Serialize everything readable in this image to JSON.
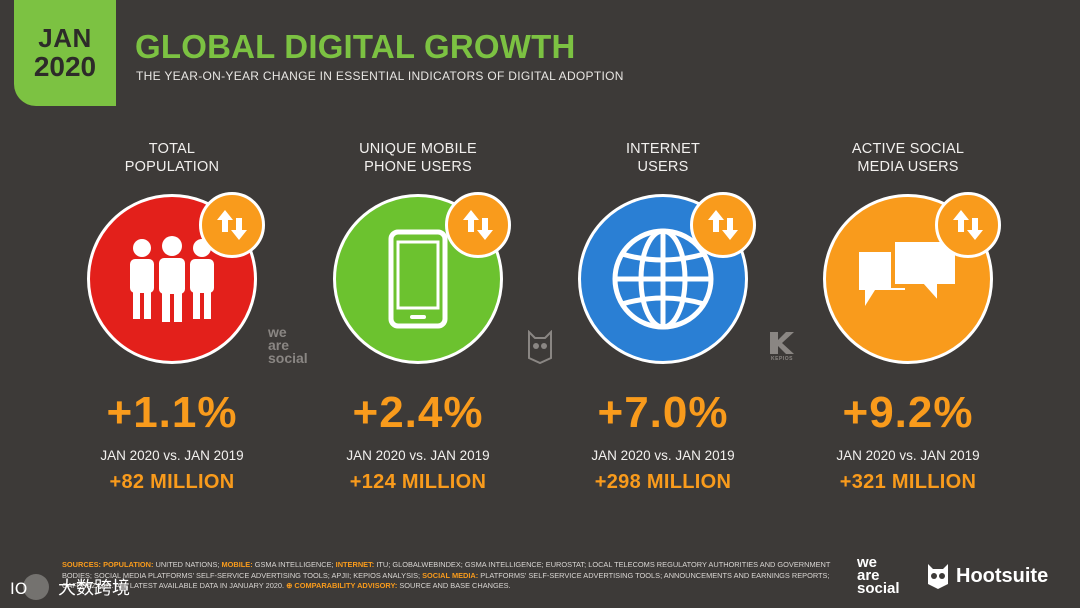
{
  "header": {
    "badge_month": "JAN",
    "badge_year": "2020",
    "title": "GLOBAL DIGITAL GROWTH",
    "subtitle": "THE YEAR-ON-YEAR CHANGE IN ESSENTIAL INDICATORS OF DIGITAL ADOPTION"
  },
  "metrics": [
    {
      "label": "TOTAL\nPOPULATION",
      "change": "+1.1%",
      "comparison": "JAN 2020 vs. JAN 2019",
      "absolute": "+82 MILLION",
      "color": "#e3201b",
      "icon": "people-icon"
    },
    {
      "label": "UNIQUE MOBILE\nPHONE USERS",
      "change": "+2.4%",
      "comparison": "JAN 2020 vs. JAN 2019",
      "absolute": "+124 MILLION",
      "color": "#6cc22f",
      "icon": "mobile-phone-icon"
    },
    {
      "label": "INTERNET\nUSERS",
      "change": "+7.0%",
      "comparison": "JAN 2020 vs. JAN 2019",
      "absolute": "+298 MILLION",
      "color": "#2a7fd4",
      "icon": "globe-icon"
    },
    {
      "label": "ACTIVE SOCIAL\nMEDIA USERS",
      "change": "+9.2%",
      "comparison": "JAN 2020 vs. JAN 2019",
      "absolute": "+321 MILLION",
      "color": "#f99b1c",
      "icon": "chat-bubbles-icon"
    }
  ],
  "watermarks": {
    "was": "we\nare\nsocial",
    "kepios": "KEPIOS"
  },
  "sources": {
    "sources_key": "SOURCES:",
    "population_key": "POPULATION:",
    "population_text": " UNITED NATIONS; ",
    "mobile_key": "MOBILE:",
    "mobile_text": " GSMA INTELLIGENCE; ",
    "internet_key": "INTERNET:",
    "internet_text": " ITU; GLOBALWEBINDEX; GSMA INTELLIGENCE; EUROSTAT; LOCAL TELECOMS REGULATORY AUTHORITIES AND GOVERNMENT BODIES; SOCIAL MEDIA PLATFORMS' SELF-SERVICE ADVERTISING TOOLS; APJII; KEPIOS ANALYSIS; ",
    "social_key": "SOCIAL MEDIA:",
    "social_text": " PLATFORMS' SELF-SERVICE ADVERTISING TOOLS; ANNOUNCEMENTS AND EARNINGS REPORTS; CAFEBAZAAR. ALL LATEST AVAILABLE DATA IN JANUARY 2020. ",
    "advisory_key": "⊕ COMPARABILITY ADVISORY:",
    "advisory_text": " SOURCE AND BASE CHANGES."
  },
  "logos": {
    "was_line1": "we",
    "was_line2": "are",
    "was_line3": "social",
    "hootsuite": "Hootsuite",
    "cn_brand": "大数跨境"
  }
}
